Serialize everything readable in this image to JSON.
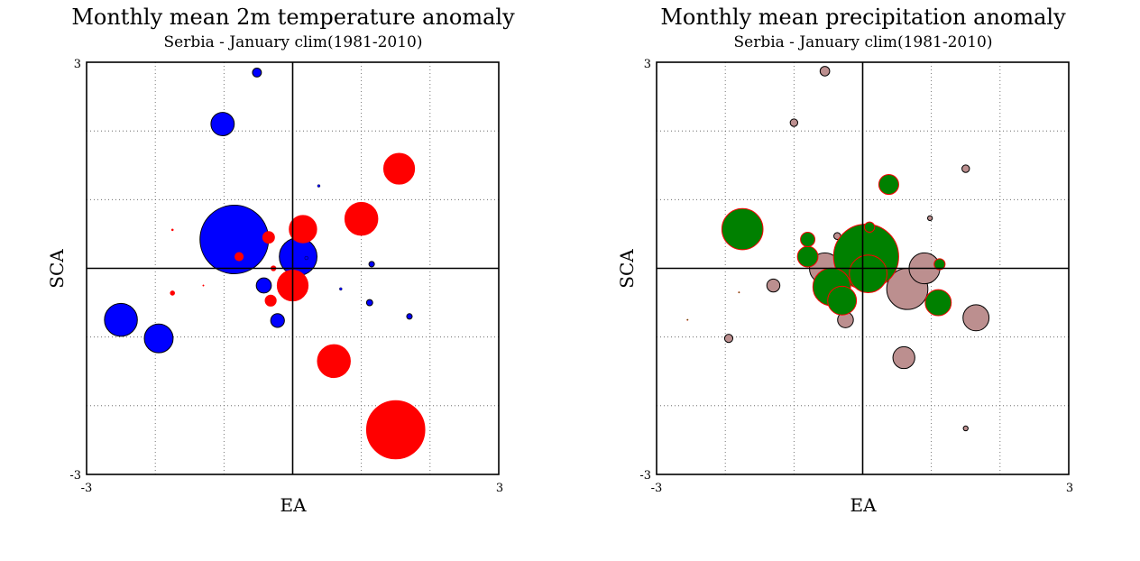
{
  "colors": {
    "positive": "#ff0000",
    "negative": "#0000ff",
    "wet": "#008000",
    "dry": "#bc8f8f",
    "wet_outline": "#ff0000",
    "dry_outline": "#000000",
    "frame": "#000000"
  },
  "chart_data": [
    {
      "type": "scatter",
      "title": "Monthly mean 2m temperature anomaly",
      "subtitle": "Serbia - January  clim(1981-2010)",
      "xlabel": "EA",
      "ylabel": "SCA",
      "xlim": [
        -3,
        3
      ],
      "ylim": [
        -3,
        3
      ],
      "x_ticks": [
        "-3",
        "3"
      ],
      "y_ticks": [
        "3",
        "-3"
      ],
      "grid": true,
      "series": [
        {
          "points": [
            {
              "x": -0.85,
              "y": 0.42,
              "size": 1.0
            },
            {
              "x": -2.5,
              "y": -0.75,
              "size": 0.48
            },
            {
              "x": -1.95,
              "y": -1.02,
              "size": 0.42
            },
            {
              "x": -1.02,
              "y": 2.1,
              "size": 0.34
            },
            {
              "x": 0.08,
              "y": 0.17,
              "size": 0.55
            },
            {
              "x": -0.42,
              "y": -0.25,
              "size": 0.22
            },
            {
              "x": -0.22,
              "y": -0.76,
              "size": 0.2
            },
            {
              "x": -0.52,
              "y": 2.85,
              "size": 0.13
            },
            {
              "x": 1.15,
              "y": 0.06,
              "size": 0.08
            },
            {
              "x": 1.12,
              "y": -0.5,
              "size": 0.09
            },
            {
              "x": 1.7,
              "y": -0.7,
              "size": 0.08
            },
            {
              "x": 0.2,
              "y": 0.15,
              "size": 0.05
            },
            {
              "x": 0.7,
              "y": -0.3,
              "size": 0.04
            },
            {
              "x": 0.38,
              "y": 1.2,
              "size": 0.04
            }
          ]
        },
        {
          "points": [
            {
              "x": 1.5,
              "y": -2.35,
              "size": 0.85
            },
            {
              "x": 0.6,
              "y": -1.35,
              "size": 0.48
            },
            {
              "x": 1.0,
              "y": 0.72,
              "size": 0.48
            },
            {
              "x": 1.55,
              "y": 1.45,
              "size": 0.45
            },
            {
              "x": 0.15,
              "y": 0.57,
              "size": 0.4
            },
            {
              "x": 0.0,
              "y": -0.25,
              "size": 0.45
            },
            {
              "x": -0.35,
              "y": 0.45,
              "size": 0.17
            },
            {
              "x": -0.32,
              "y": -0.47,
              "size": 0.16
            },
            {
              "x": -0.78,
              "y": 0.17,
              "size": 0.12
            },
            {
              "x": -0.28,
              "y": 0.0,
              "size": 0.07
            },
            {
              "x": -1.75,
              "y": -0.36,
              "size": 0.06
            },
            {
              "x": -1.75,
              "y": 0.56,
              "size": 0.03
            },
            {
              "x": -1.3,
              "y": -0.25,
              "size": 0.02
            }
          ]
        }
      ]
    },
    {
      "type": "scatter",
      "title": "Monthly mean precipitation anomaly",
      "subtitle": "Serbia - January  clim(1981-2010)",
      "xlabel": "EA",
      "ylabel": "SCA",
      "xlim": [
        -3,
        3
      ],
      "ylim": [
        -3,
        3
      ],
      "x_ticks": [
        "-3",
        "3"
      ],
      "y_ticks": [
        "3",
        "-3"
      ],
      "grid": true,
      "series": [
        {
          "points": [
            {
              "x": 0.65,
              "y": -0.3,
              "size": 0.6
            },
            {
              "x": -0.55,
              "y": 0.0,
              "size": 0.45
            },
            {
              "x": 0.9,
              "y": 0.0,
              "size": 0.45
            },
            {
              "x": 1.65,
              "y": -0.72,
              "size": 0.38
            },
            {
              "x": 0.6,
              "y": -1.3,
              "size": 0.32
            },
            {
              "x": -0.25,
              "y": -0.75,
              "size": 0.23
            },
            {
              "x": -1.3,
              "y": -0.25,
              "size": 0.19
            },
            {
              "x": -0.55,
              "y": 2.87,
              "size": 0.14
            },
            {
              "x": -1.0,
              "y": 2.12,
              "size": 0.11
            },
            {
              "x": 1.5,
              "y": 1.45,
              "size": 0.11
            },
            {
              "x": -1.95,
              "y": -1.02,
              "size": 0.12
            },
            {
              "x": -0.37,
              "y": 0.47,
              "size": 0.1
            },
            {
              "x": 0.98,
              "y": 0.73,
              "size": 0.07
            },
            {
              "x": 1.5,
              "y": -2.33,
              "size": 0.07
            }
          ]
        },
        {
          "points": [
            {
              "x": 0.05,
              "y": 0.17,
              "size": 0.95
            },
            {
              "x": 0.08,
              "y": -0.08,
              "size": 0.55
            },
            {
              "x": -1.75,
              "y": 0.57,
              "size": 0.6
            },
            {
              "x": -0.45,
              "y": -0.27,
              "size": 0.55
            },
            {
              "x": -0.3,
              "y": -0.47,
              "size": 0.42
            },
            {
              "x": 1.1,
              "y": -0.5,
              "size": 0.38
            },
            {
              "x": 0.38,
              "y": 1.22,
              "size": 0.29
            },
            {
              "x": -0.8,
              "y": 0.17,
              "size": 0.3
            },
            {
              "x": -0.8,
              "y": 0.42,
              "size": 0.21
            },
            {
              "x": 1.12,
              "y": 0.06,
              "size": 0.16
            },
            {
              "x": 0.1,
              "y": 0.6,
              "size": 0.15
            },
            {
              "x": -2.55,
              "y": -0.75,
              "size": 0.02
            },
            {
              "x": -1.8,
              "y": -0.35,
              "size": 0.015
            }
          ]
        }
      ]
    }
  ]
}
